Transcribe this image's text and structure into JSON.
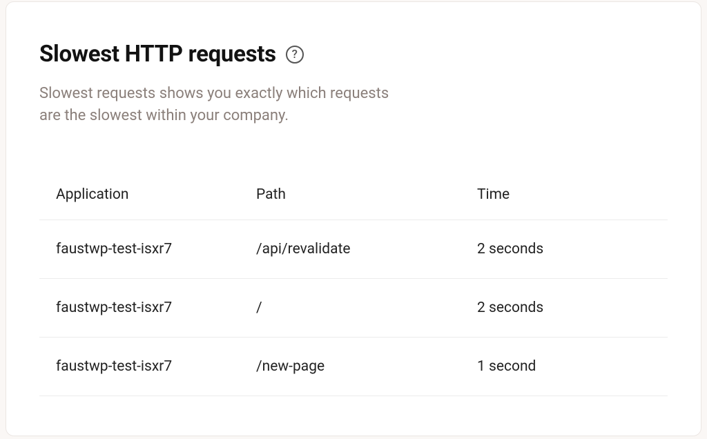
{
  "colors": {
    "page_bg": "#faf7f5",
    "card_bg": "#ffffff",
    "card_border": "#ebe6e3",
    "title_color": "#121212",
    "description_color": "#8a7f7a",
    "text_color": "#232323",
    "row_border": "#ececec",
    "help_icon_color": "#555555"
  },
  "header": {
    "title": "Slowest HTTP requests",
    "help_glyph": "?",
    "description": "Slowest requests shows you exactly which requests are the slowest within your company."
  },
  "table": {
    "columns": [
      "Application",
      "Path",
      "Time"
    ],
    "rows": [
      {
        "application": "faustwp-test-isxr7",
        "path": "/api/revalidate",
        "time": "2 seconds"
      },
      {
        "application": "faustwp-test-isxr7",
        "path": "/",
        "time": "2 seconds"
      },
      {
        "application": "faustwp-test-isxr7",
        "path": "/new-page",
        "time": "1 second"
      }
    ]
  }
}
